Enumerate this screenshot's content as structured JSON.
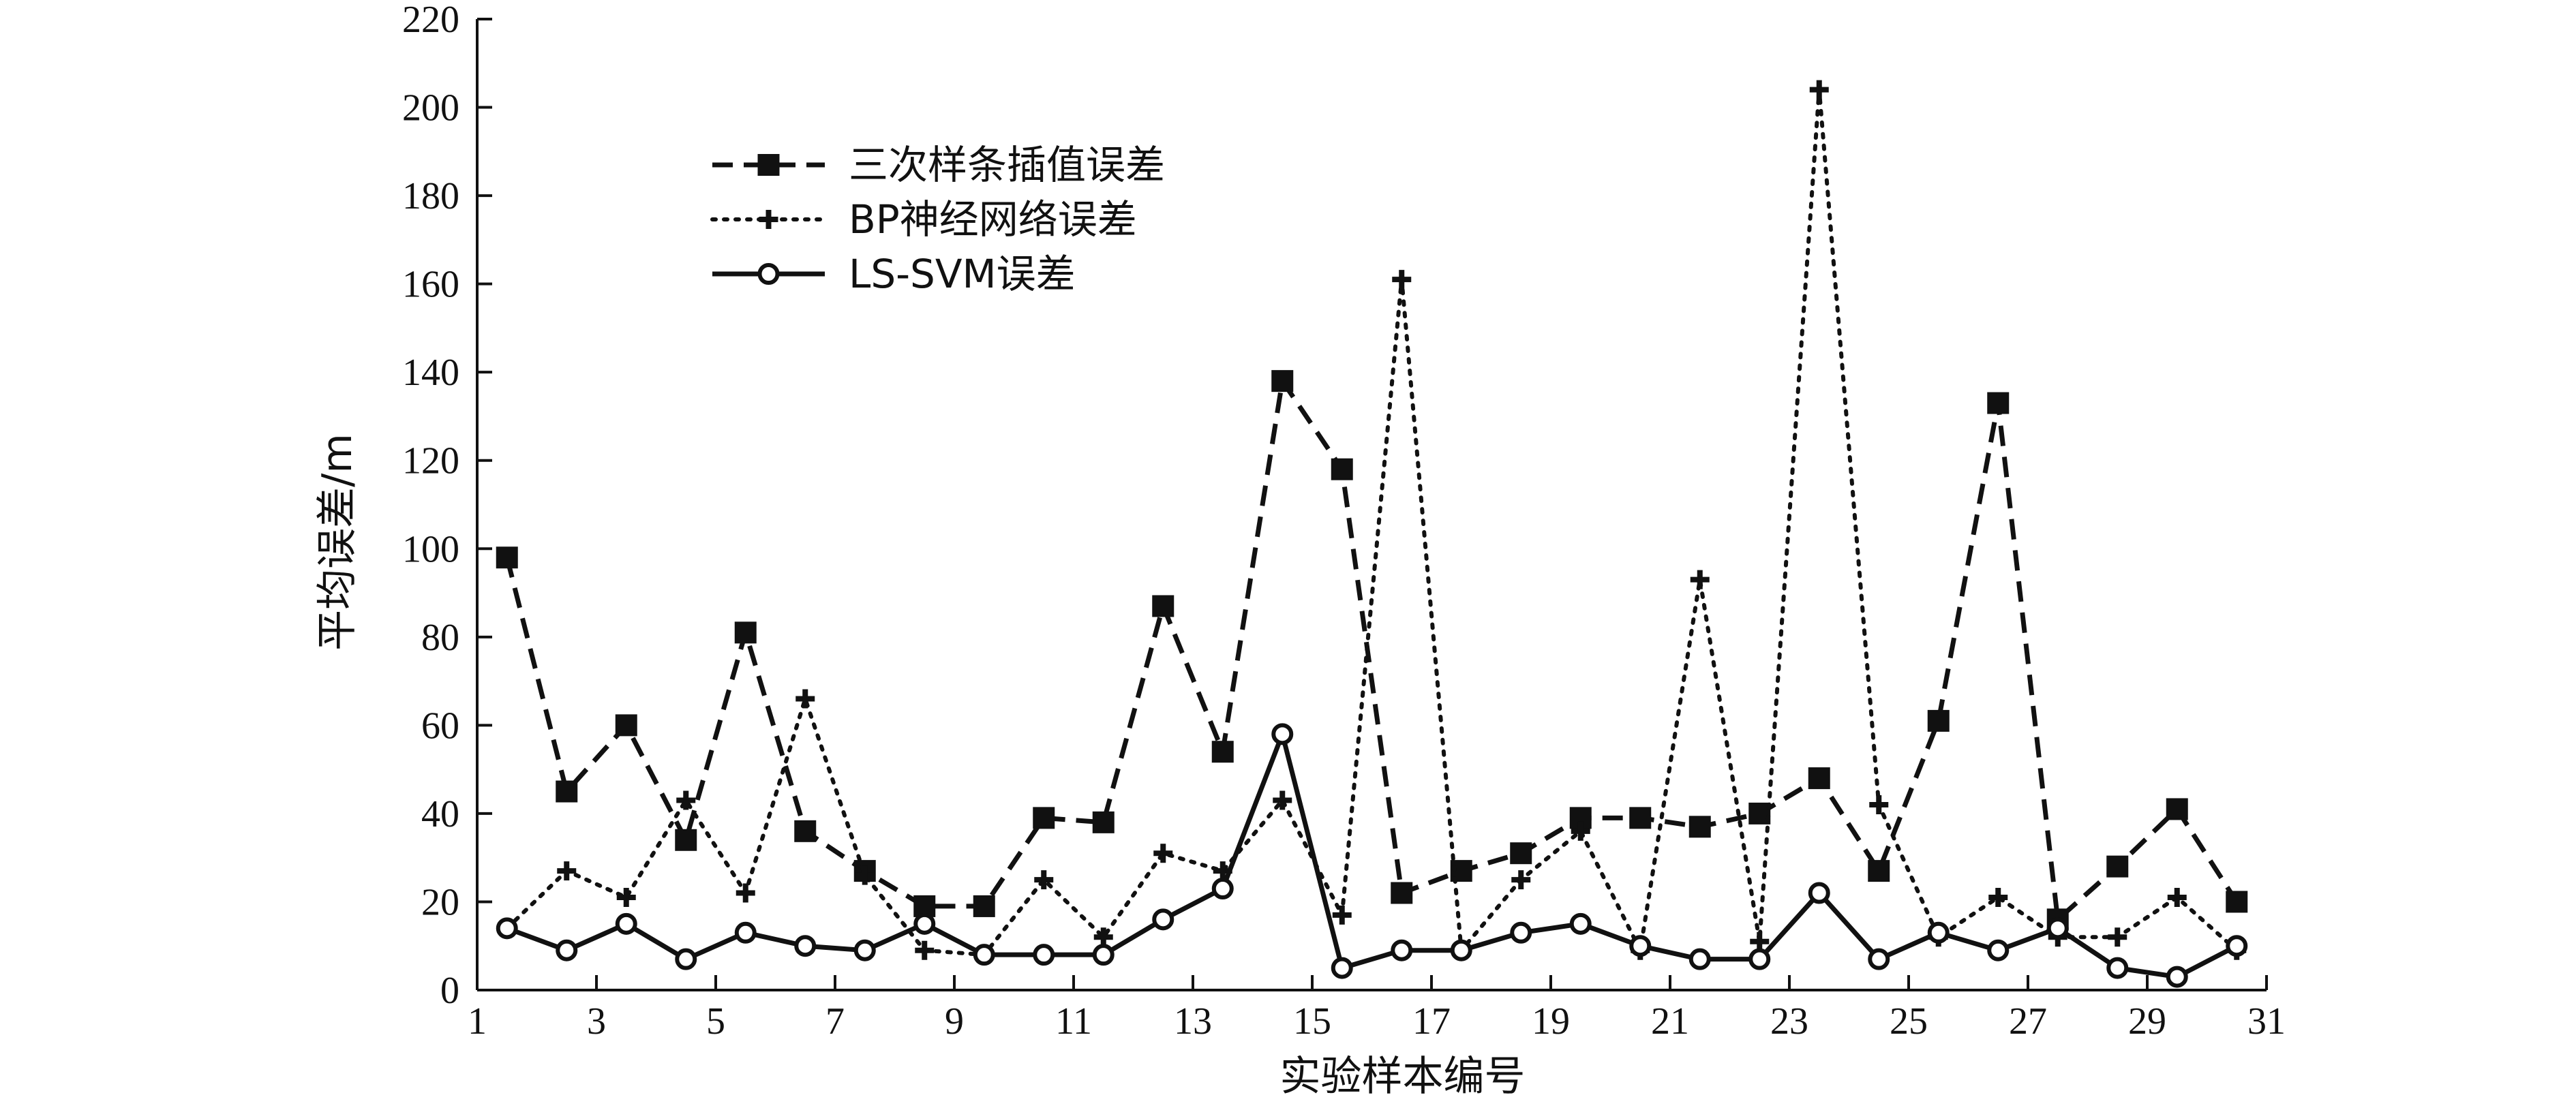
{
  "chart_data": {
    "type": "line",
    "xlabel": "实验样本编号",
    "ylabel": "平均误差/m",
    "xlim": [
      1,
      31
    ],
    "ylim": [
      0,
      220
    ],
    "x_ticks": [
      1,
      3,
      5,
      7,
      9,
      11,
      13,
      15,
      17,
      19,
      21,
      23,
      25,
      27,
      29,
      31
    ],
    "y_ticks": [
      0,
      20,
      40,
      60,
      80,
      100,
      120,
      140,
      160,
      180,
      200,
      220
    ],
    "x": [
      1.5,
      2.5,
      3.5,
      4.5,
      5.5,
      6.5,
      7.5,
      8.5,
      9.5,
      10.5,
      11.5,
      12.5,
      13.5,
      14.5,
      15.5,
      16.5,
      17.5,
      18.5,
      19.5,
      20.5,
      21.5,
      22.5,
      23.5,
      24.5,
      25.5,
      26.5,
      27.5,
      28.5,
      29.5,
      30.5
    ],
    "legend_position": "top-left",
    "grid": false,
    "series": [
      {
        "name": "三次样条插值误差",
        "line_style": "dashed",
        "marker": "filled-square",
        "color": "#111111",
        "values": [
          98,
          45,
          60,
          34,
          81,
          36,
          27,
          19,
          19,
          39,
          38,
          87,
          54,
          138,
          118,
          22,
          27,
          31,
          39,
          39,
          37,
          40,
          48,
          27,
          61,
          133,
          16,
          28,
          41,
          20
        ]
      },
      {
        "name": "BP神经网络误差",
        "line_style": "dotted",
        "marker": "plus",
        "color": "#111111",
        "values": [
          14,
          27,
          21,
          43,
          22,
          66,
          26,
          9,
          8,
          25,
          12,
          31,
          27,
          43,
          17,
          161,
          9,
          25,
          36,
          9,
          93,
          11,
          204,
          42,
          12,
          21,
          12,
          12,
          21,
          9
        ]
      },
      {
        "name": "LS-SVM误差",
        "line_style": "solid",
        "marker": "open-circle",
        "color": "#111111",
        "values": [
          14,
          9,
          15,
          7,
          13,
          10,
          9,
          15,
          8,
          8,
          8,
          16,
          23,
          58,
          5,
          9,
          9,
          13,
          15,
          10,
          7,
          7,
          22,
          7,
          13,
          9,
          14,
          5,
          3,
          10
        ]
      }
    ]
  }
}
